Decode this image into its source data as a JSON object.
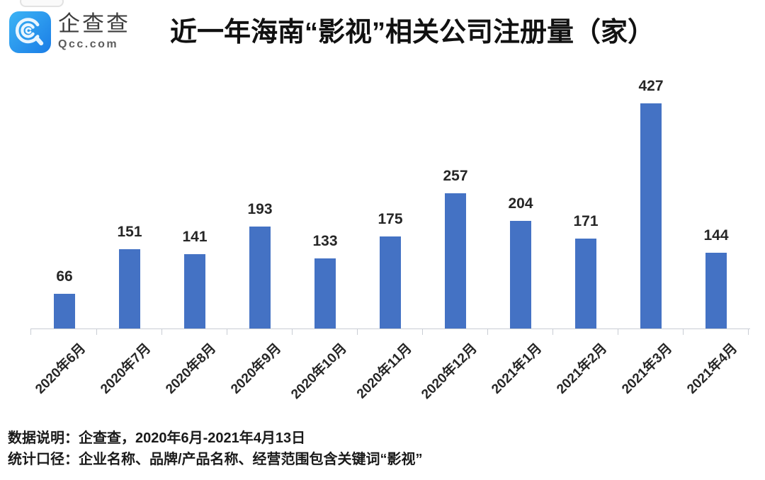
{
  "brand": {
    "name": "企查查",
    "domain": "Qcc.com"
  },
  "title": "近一年海南“影视”相关公司注册量（家）",
  "chart_data": {
    "type": "bar",
    "title": "近一年海南“影视”相关公司注册量（家）",
    "categories": [
      "2020年6月",
      "2020年7月",
      "2020年8月",
      "2020年9月",
      "2020年10月",
      "2020年11月",
      "2020年12月",
      "2021年1月",
      "2021年2月",
      "2021年3月",
      "2021年4月"
    ],
    "values": [
      66,
      151,
      141,
      193,
      133,
      175,
      257,
      204,
      171,
      427,
      144
    ],
    "xlabel": "",
    "ylabel": "",
    "ylim": [
      0,
      450
    ],
    "bar_color": "#4472C4",
    "value_label_color": "#262626",
    "axis_color": "#C9CDD4",
    "grid": false,
    "legend": "none",
    "value_labels": true,
    "x_tick_rotation": -45
  },
  "footer": {
    "line1": "数据说明：企查查，2020年6月-2021年4月13日",
    "line2": "统计口径：企业名称、品牌/产品名称、经营范围包含关键词“影视”"
  },
  "colors": {
    "logo_gradient_start": "#3CB4F5",
    "logo_gradient_end": "#1B7DE6"
  }
}
